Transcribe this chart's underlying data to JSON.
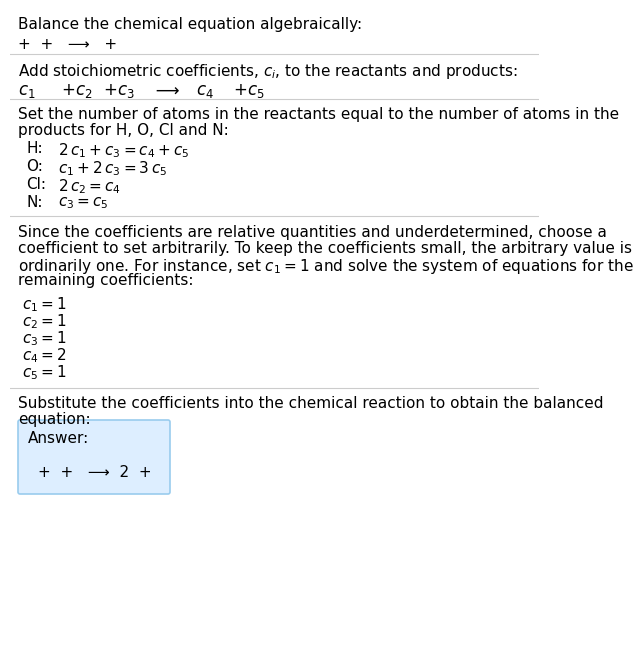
{
  "title": "Balance the chemical equation algebraically:",
  "line1": "+  +   ⟶   +",
  "section2_header": "Add stoichiometric coefficients, $c_i$, to the reactants and products:",
  "section2_eq_parts": [
    "$c_1$",
    " +$c_2$",
    " +$c_3$",
    "   ⟶",
    "  $c_4$",
    "  +$c_5$"
  ],
  "section3_header1": "Set the number of atoms in the reactants equal to the number of atoms in the",
  "section3_header2": "products for H, O, Cl and N:",
  "section3_lines": [
    [
      "H:",
      "$2\\,c_1 + c_3 = c_4 + c_5$"
    ],
    [
      "O:",
      "$c_1 + 2\\,c_3 = 3\\,c_5$"
    ],
    [
      "Cl:",
      "$2\\,c_2 = c_4$"
    ],
    [
      "N:",
      "$c_3 = c_5$"
    ]
  ],
  "section4_header": [
    "Since the coefficients are relative quantities and underdetermined, choose a",
    "coefficient to set arbitrarily. To keep the coefficients small, the arbitrary value is",
    "ordinarily one. For instance, set $c_1 = 1$ and solve the system of equations for the",
    "remaining coefficients:"
  ],
  "section4_lines": [
    "$c_1 = 1$",
    "$c_2 = 1$",
    "$c_3 = 1$",
    "$c_4 = 2$",
    "$c_5 = 1$"
  ],
  "section5_header1": "Substitute the coefficients into the chemical reaction to obtain the balanced",
  "section5_header2": "equation:",
  "answer_label": "Answer:",
  "answer_eq": "+  +   ⟶  2  +",
  "bg_color": "#ffffff",
  "answer_box_facecolor": "#ddeeff",
  "answer_box_edgecolor": "#99ccee",
  "text_color": "#000000",
  "line_color": "#cccccc",
  "font_size": 11,
  "eq_font_size": 12
}
